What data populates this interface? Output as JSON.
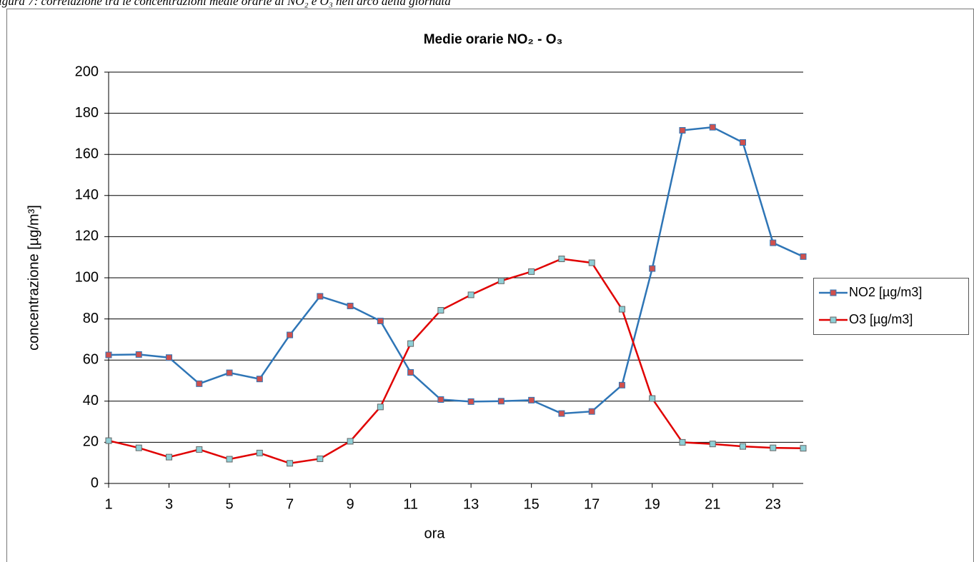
{
  "caption": "igura 7: correlazione tra le concentrazioni medie orarie di NO₂ e O₃ nell'arco della giornata",
  "chart_data": {
    "type": "line",
    "title": "Medie orarie NO₂ - O₃",
    "x_label": "ora",
    "y_label": "concentrazione [µg/m³]",
    "x": [
      1,
      2,
      3,
      4,
      5,
      6,
      7,
      8,
      9,
      10,
      11,
      12,
      13,
      14,
      15,
      16,
      17,
      18,
      19,
      20,
      21,
      22,
      23,
      24
    ],
    "xlim": [
      1,
      24
    ],
    "xticks": [
      1,
      3,
      5,
      7,
      9,
      11,
      13,
      15,
      17,
      19,
      21,
      23
    ],
    "ylim": [
      0,
      200
    ],
    "yticks": [
      0,
      20,
      40,
      60,
      80,
      100,
      120,
      140,
      160,
      180,
      200
    ],
    "grid": true,
    "legend": "right",
    "series": [
      {
        "name": "NO2 [µg/m3]",
        "color": "#2e75b6",
        "marker_color": "#d0504d",
        "values": [
          62.5,
          62.7,
          61.2,
          48.5,
          53.8,
          50.8,
          72.2,
          91,
          86.3,
          79,
          54,
          40.8,
          39.8,
          40,
          40.5,
          34,
          35,
          47.8,
          104.5,
          171.7,
          173.2,
          165.8,
          117,
          110.3
        ]
      },
      {
        "name": "O3 [µg/m3]",
        "color": "#e00000",
        "marker_color": "#8ecfd6",
        "values": [
          20.8,
          17.3,
          12.8,
          16.5,
          11.8,
          14.8,
          9.8,
          12,
          20.5,
          37.2,
          68,
          84.2,
          91.7,
          98.5,
          103,
          109.2,
          107.3,
          84.7,
          41.3,
          20,
          19.2,
          18,
          17.3,
          17.1
        ]
      }
    ]
  }
}
